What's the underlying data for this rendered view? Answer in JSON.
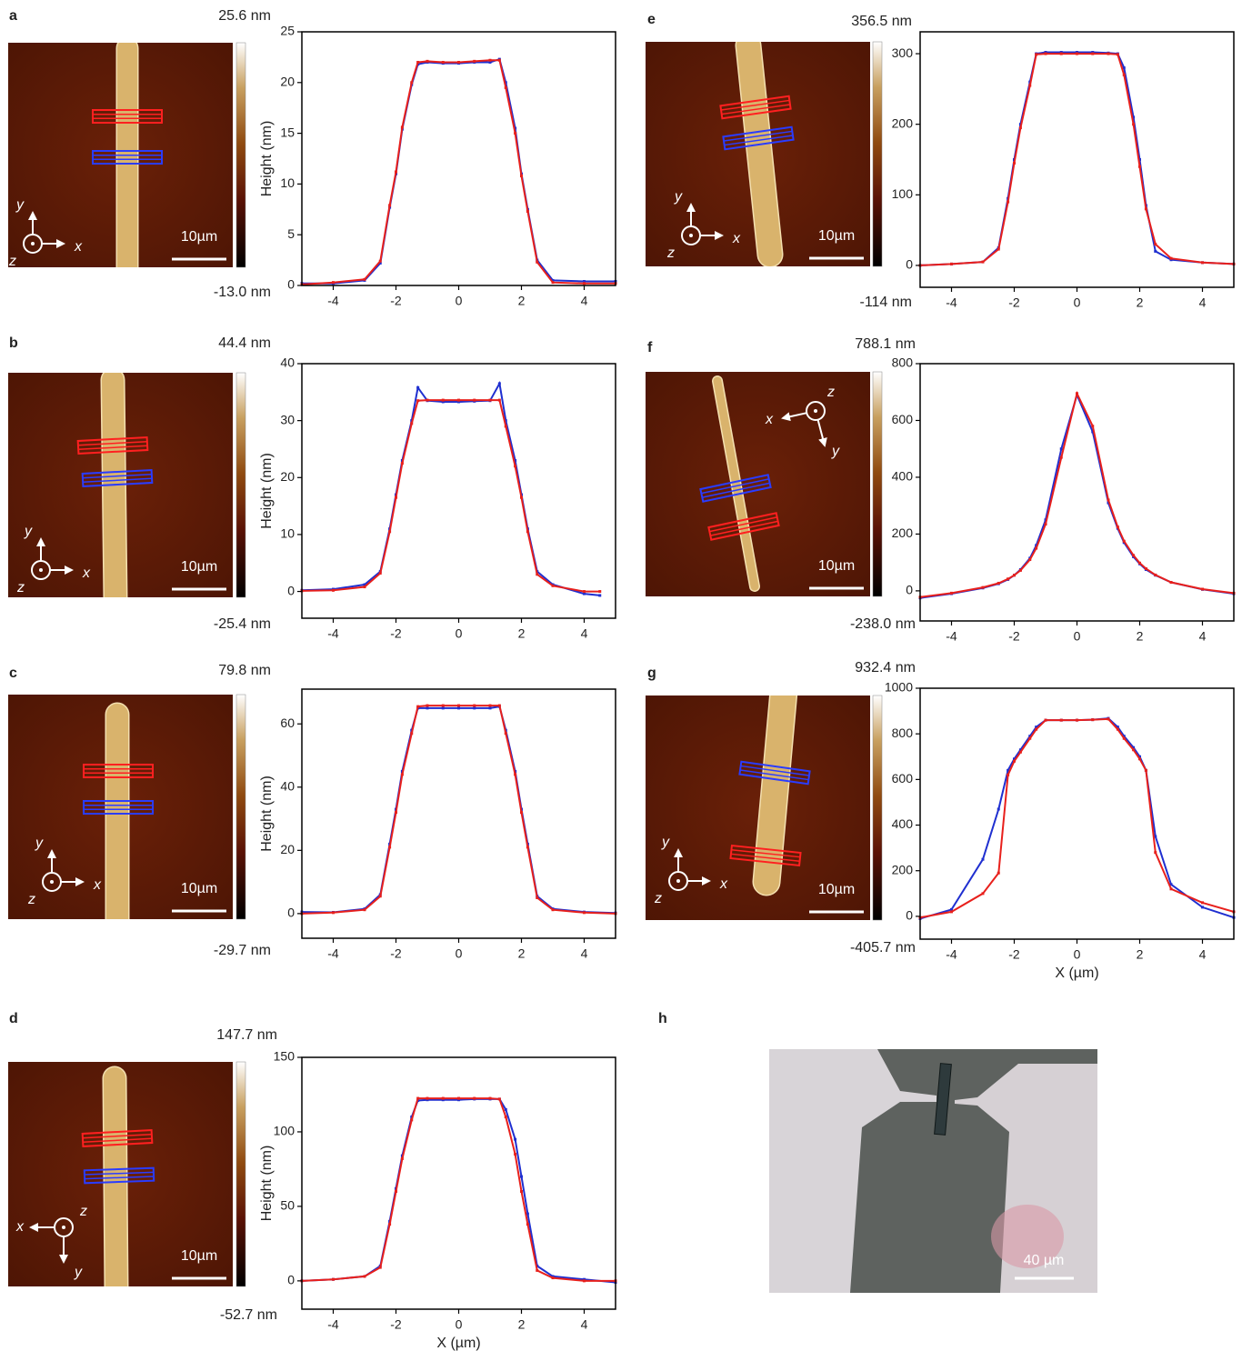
{
  "chart_data": [
    {
      "type": "line",
      "panel": "a",
      "colorbar_max": "25.6 nm",
      "colorbar_min": "-13.0 nm",
      "scale_bar": "10µm",
      "glyph": {
        "x": "x",
        "y": "y",
        "z": "z"
      },
      "y_label": "Height (nm)",
      "x": [
        -5,
        -4,
        -3,
        -2.5,
        -2.2,
        -2,
        -1.8,
        -1.5,
        -1.3,
        -1,
        -0.5,
        0,
        0.5,
        1,
        1.3,
        1.5,
        1.8,
        2,
        2.2,
        2.5,
        3,
        4,
        5
      ],
      "series": [
        {
          "color": "#1f2fd0",
          "values": [
            0.2,
            0.2,
            0.5,
            2.2,
            7.7,
            11,
            15.4,
            19.8,
            21.8,
            22,
            21.9,
            21.9,
            22,
            22,
            22.3,
            20,
            15.5,
            11,
            7.5,
            2.5,
            0.5,
            0.4,
            0.4
          ]
        },
        {
          "color": "#e8201c",
          "values": [
            0.1,
            0.3,
            0.6,
            2.4,
            7.9,
            11.2,
            15.6,
            20,
            22,
            22.1,
            22,
            22,
            22.1,
            22.2,
            22.2,
            19.5,
            15,
            10.8,
            7.3,
            2.3,
            0.3,
            0.2,
            0.2
          ]
        }
      ],
      "xlim": [
        -5,
        5
      ],
      "xticks": [
        -4,
        -2,
        0,
        2,
        4
      ],
      "ylim": [
        0,
        25
      ],
      "yticks": [
        0,
        5,
        10,
        15,
        20,
        25
      ]
    },
    {
      "type": "line",
      "panel": "b",
      "colorbar_max": "44.4 nm",
      "colorbar_min": "-25.4 nm",
      "scale_bar": "10µm",
      "glyph": {
        "x": "x",
        "y": "y",
        "z": "z"
      },
      "y_label": "Height (nm)",
      "x": [
        -5,
        -4,
        -3,
        -2.5,
        -2.2,
        -2,
        -1.8,
        -1.5,
        -1.3,
        -1,
        -0.5,
        0,
        0.5,
        1,
        1.3,
        1.5,
        1.8,
        2,
        2.2,
        2.5,
        3,
        4,
        4.5
      ],
      "series": [
        {
          "color": "#1f2fd0",
          "values": [
            0.2,
            0.4,
            1.2,
            3.5,
            11,
            17,
            23,
            30,
            35.8,
            33.5,
            33.3,
            33.3,
            33.4,
            33.5,
            36.5,
            30,
            23,
            17,
            11,
            3.5,
            1.2,
            -0.4,
            -0.7
          ]
        },
        {
          "color": "#e8201c",
          "values": [
            0.1,
            0.2,
            0.8,
            3.2,
            10.5,
            16.5,
            22.5,
            29.5,
            33.5,
            33.6,
            33.6,
            33.6,
            33.6,
            33.6,
            33.6,
            29,
            22,
            16.5,
            10.5,
            3,
            1,
            0,
            0
          ]
        }
      ],
      "xlim": [
        -5,
        5
      ],
      "xticks": [
        -4,
        -2,
        0,
        2,
        4
      ],
      "ylim": [
        -4.7,
        40
      ],
      "yticks": [
        0,
        10,
        20,
        30,
        40
      ]
    },
    {
      "type": "line",
      "panel": "c",
      "colorbar_max": "79.8 nm",
      "colorbar_min": "-29.7 nm",
      "scale_bar": "10µm",
      "glyph": {
        "x": "x",
        "y": "y",
        "z": "z"
      },
      "y_label": "Height (nm)",
      "x": [
        -5,
        -4,
        -3,
        -2.5,
        -2.2,
        -2,
        -1.8,
        -1.5,
        -1.3,
        -1,
        -0.5,
        0,
        0.5,
        1,
        1.3,
        1.5,
        1.8,
        2,
        2.2,
        2.5,
        3,
        4,
        5
      ],
      "series": [
        {
          "color": "#1f2fd0",
          "values": [
            0.5,
            0.4,
            1.5,
            6,
            22,
            33,
            45,
            58,
            65,
            65,
            65,
            65,
            65,
            65,
            65.5,
            58,
            45,
            33,
            22,
            5.5,
            1.5,
            0.5,
            0.2
          ]
        },
        {
          "color": "#e8201c",
          "values": [
            0,
            0.3,
            1.2,
            5.5,
            21,
            32,
            44,
            57,
            65.5,
            65.8,
            65.8,
            65.8,
            65.8,
            65.8,
            65.8,
            57,
            44,
            32,
            21,
            5,
            1.2,
            0.3,
            0
          ]
        }
      ],
      "xlim": [
        -5,
        5
      ],
      "xticks": [
        -4,
        -2,
        0,
        2,
        4
      ],
      "ylim": [
        -7.8,
        71
      ],
      "yticks": [
        0,
        20,
        40,
        60
      ]
    },
    {
      "type": "line",
      "panel": "d",
      "colorbar_max": "147.7 nm",
      "colorbar_min": "-52.7 nm",
      "scale_bar": "10µm",
      "glyph": {
        "x": "x",
        "y": "y",
        "z": "z"
      },
      "y_label": "Height (nm)",
      "x_label": "X (µm)",
      "x": [
        -5,
        -4,
        -3,
        -2.5,
        -2.2,
        -2,
        -1.8,
        -1.5,
        -1.3,
        -1,
        -0.5,
        0,
        0.5,
        1,
        1.3,
        1.5,
        1.8,
        2,
        2.2,
        2.5,
        3,
        4,
        5
      ],
      "series": [
        {
          "color": "#1f2fd0",
          "values": [
            0,
            1,
            3,
            10,
            40,
            62,
            84,
            110,
            121,
            121.5,
            121.5,
            121.5,
            122,
            122,
            122,
            115,
            95,
            70,
            45,
            10,
            3,
            1,
            -1
          ]
        },
        {
          "color": "#e8201c",
          "values": [
            0,
            1,
            3,
            9,
            38,
            60,
            82,
            108,
            122.5,
            122.5,
            122.5,
            122.5,
            122.5,
            122.5,
            122,
            110,
            85,
            60,
            38,
            7,
            2,
            0,
            0
          ]
        }
      ],
      "xlim": [
        -5,
        5
      ],
      "xticks": [
        -4,
        -2,
        0,
        2,
        4
      ],
      "ylim": [
        -19,
        150
      ],
      "yticks": [
        0,
        50,
        100,
        150
      ]
    },
    {
      "type": "line",
      "panel": "e",
      "colorbar_max": "356.5 nm",
      "colorbar_min": "-114 nm",
      "scale_bar": "10µm",
      "glyph": {
        "x": "x",
        "y": "y",
        "z": "z"
      },
      "x": [
        -5,
        -4,
        -3,
        -2.5,
        -2.2,
        -2,
        -1.8,
        -1.5,
        -1.3,
        -1,
        -0.5,
        0,
        0.5,
        1,
        1.3,
        1.5,
        1.8,
        2,
        2.2,
        2.5,
        3,
        4,
        5
      ],
      "series": [
        {
          "color": "#1f2fd0",
          "values": [
            0,
            2,
            5,
            25,
            95,
            150,
            200,
            260,
            300,
            302,
            302,
            302,
            302,
            301,
            300,
            280,
            210,
            150,
            85,
            20,
            8,
            4,
            2
          ]
        },
        {
          "color": "#e8201c",
          "values": [
            0,
            2,
            5,
            23,
            90,
            145,
            195,
            255,
            299,
            300,
            300,
            300,
            300,
            300,
            299,
            270,
            200,
            140,
            80,
            30,
            10,
            4,
            2
          ]
        }
      ],
      "xlim": [
        -5,
        5
      ],
      "xticks": [
        -4,
        -2,
        0,
        2,
        4
      ],
      "ylim": [
        -31,
        331
      ],
      "yticks": [
        0,
        100,
        200,
        300
      ]
    },
    {
      "type": "line",
      "panel": "f",
      "colorbar_max": "788.1 nm",
      "colorbar_min": "-238.0 nm",
      "scale_bar": "10µm",
      "glyph": {
        "x": "x",
        "y": "y",
        "z": "z"
      },
      "x": [
        -5,
        -4,
        -3,
        -2.5,
        -2.2,
        -2,
        -1.8,
        -1.5,
        -1.3,
        -1,
        -0.5,
        0,
        0.5,
        1,
        1.3,
        1.5,
        1.8,
        2,
        2.2,
        2.5,
        3,
        4,
        5
      ],
      "series": [
        {
          "color": "#1f2fd0",
          "values": [
            -25,
            -10,
            10,
            25,
            40,
            55,
            75,
            115,
            160,
            250,
            500,
            690,
            560,
            310,
            220,
            170,
            120,
            95,
            75,
            55,
            30,
            5,
            -10
          ]
        },
        {
          "color": "#e8201c",
          "values": [
            -22,
            -8,
            12,
            27,
            42,
            55,
            72,
            110,
            150,
            235,
            470,
            695,
            580,
            320,
            225,
            175,
            125,
            98,
            78,
            56,
            30,
            6,
            -8
          ]
        }
      ],
      "xlim": [
        -5,
        5
      ],
      "xticks": [
        -4,
        -2,
        0,
        2,
        4
      ],
      "ylim": [
        -106,
        800
      ],
      "yticks": [
        0,
        200,
        400,
        600,
        800
      ]
    },
    {
      "type": "line",
      "panel": "g",
      "colorbar_max": "932.4 nm",
      "colorbar_min": "-405.7 nm",
      "scale_bar": "10µm",
      "glyph": {
        "x": "x",
        "y": "y",
        "z": "z"
      },
      "x_label": "X (µm)",
      "x": [
        -5,
        -4,
        -3,
        -2.5,
        -2.2,
        -2,
        -1.8,
        -1.5,
        -1.3,
        -1,
        -0.5,
        0,
        0.5,
        1,
        1.3,
        1.5,
        1.8,
        2,
        2.2,
        2.5,
        3,
        4,
        5
      ],
      "series": [
        {
          "color": "#1f2fd0",
          "values": [
            -10,
            30,
            250,
            470,
            640,
            690,
            730,
            790,
            830,
            860,
            860,
            860,
            862,
            868,
            830,
            790,
            740,
            700,
            640,
            350,
            140,
            40,
            -5
          ]
        },
        {
          "color": "#e8201c",
          "values": [
            -5,
            20,
            100,
            190,
            620,
            680,
            720,
            780,
            820,
            860,
            860,
            860,
            862,
            865,
            820,
            780,
            730,
            690,
            640,
            280,
            120,
            60,
            20
          ]
        }
      ],
      "xlim": [
        -5,
        5
      ],
      "xticks": [
        -4,
        -2,
        0,
        2,
        4
      ],
      "ylim": [
        -100,
        1000
      ],
      "yticks": [
        0,
        200,
        400,
        600,
        800,
        1000
      ]
    }
  ],
  "photo": {
    "panel": "h",
    "scale_bar": "40 µm"
  }
}
